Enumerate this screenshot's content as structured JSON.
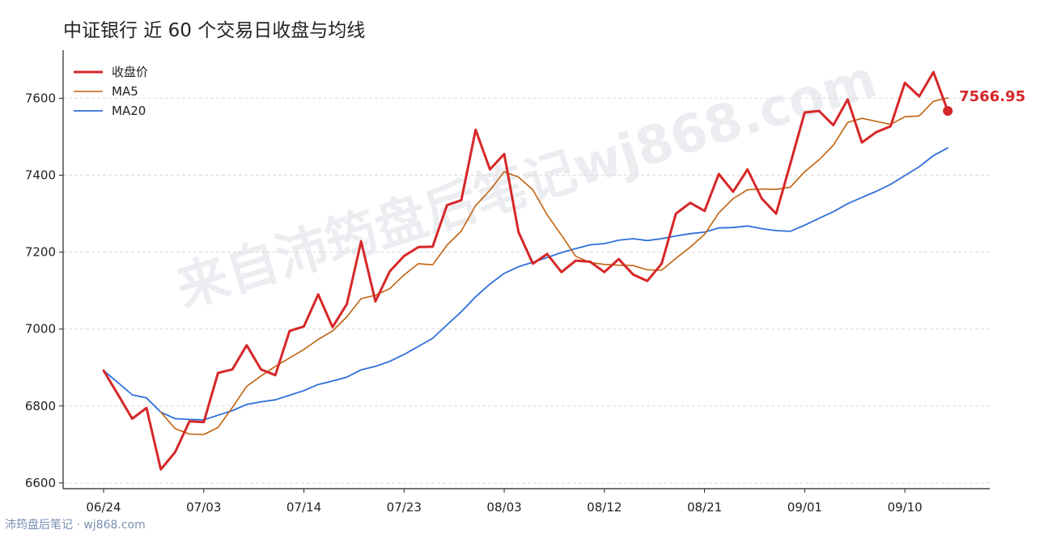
{
  "title": "中证银行 近 60 个交易日收盘与均线",
  "watermark": "来自沛筠盘后笔记wj868.com",
  "footer": "沛筠盘后笔记 · wj868.com",
  "chart_data": {
    "type": "line",
    "x": [
      "06/24",
      "06/25",
      "06/26",
      "06/27",
      "06/28",
      "07/01",
      "07/02",
      "07/03",
      "07/04",
      "07/05",
      "07/08",
      "07/09",
      "07/10",
      "07/11",
      "07/12",
      "07/15",
      "07/16",
      "07/17",
      "07/18",
      "07/19",
      "07/22",
      "07/23",
      "07/24",
      "07/25",
      "07/26",
      "07/29",
      "07/30",
      "07/31",
      "08/01",
      "08/02",
      "08/05",
      "08/06",
      "08/07",
      "08/08",
      "08/09",
      "08/12",
      "08/13",
      "08/14",
      "08/15",
      "08/16",
      "08/19",
      "08/20",
      "08/21",
      "08/22",
      "08/23",
      "08/26",
      "08/27",
      "08/28",
      "08/29",
      "08/30",
      "09/02",
      "09/03",
      "09/04",
      "09/05",
      "09/06",
      "09/09",
      "09/10",
      "09/11",
      "09/12",
      "09/13"
    ],
    "xticks": [
      "06/24",
      "07/03",
      "07/14",
      "07/23",
      "08/03",
      "08/12",
      "08/21",
      "09/01",
      "09/10"
    ],
    "xtick_positions": [
      0,
      7,
      14,
      21,
      28,
      35,
      42,
      49,
      56
    ],
    "yticks": [
      6600,
      6800,
      7000,
      7200,
      7400,
      7600
    ],
    "ylim": [
      6585,
      7725
    ],
    "series": [
      {
        "name": "收盘价",
        "color": "#d62728",
        "values": [
          6892,
          6830,
          6767,
          6795,
          6635,
          6680,
          6760,
          6758,
          6886,
          6895,
          6958,
          6895,
          6880,
          6995,
          7007,
          7090,
          7005,
          7065,
          7228,
          7072,
          7150,
          7190,
          7213,
          7214,
          7322,
          7335,
          7518,
          7415,
          7455,
          7252,
          7170,
          7195,
          7148,
          7178,
          7175,
          7148,
          7182,
          7142,
          7125,
          7170,
          7300,
          7328,
          7307,
          7403,
          7357,
          7415,
          7339,
          7300,
          7430,
          7563,
          7567,
          7530,
          7597,
          7485,
          7512,
          7527,
          7640,
          7605,
          7668,
          7567
        ]
      },
      {
        "name": "MA5",
        "color": "#c0620f",
        "values": [
          null,
          null,
          null,
          null,
          6784,
          6741,
          6727,
          6726,
          6744,
          6796,
          6851,
          6878,
          6903,
          6925,
          6947,
          6973,
          6995,
          7032,
          7079,
          7088,
          7105,
          7141,
          7170,
          7167,
          7218,
          7255,
          7321,
          7361,
          7409,
          7395,
          7362,
          7297,
          7244,
          7189,
          7173,
          7168,
          7166,
          7165,
          7154,
          7153,
          7184,
          7213,
          7246,
          7302,
          7339,
          7362,
          7364,
          7363,
          7369,
          7409,
          7440,
          7478,
          7537,
          7548,
          7540,
          7532,
          7552,
          7554,
          7592,
          7601
        ]
      },
      {
        "name": "MA20",
        "color": "#2f6fdb",
        "values": [
          6892,
          6861,
          6829,
          6821,
          6784,
          6767,
          6765,
          6764,
          6776,
          6788,
          6804,
          6811,
          6816,
          6828,
          6840,
          6856,
          6865,
          6875,
          6894,
          6903,
          6916,
          6934,
          6955,
          6976,
          7011,
          7045,
          7084,
          7117,
          7145,
          7162,
          7174,
          7186,
          7199,
          7209,
          7219,
          7222,
          7231,
          7235,
          7230,
          7235,
          7242,
          7248,
          7252,
          7263,
          7264,
          7268,
          7261,
          7256,
          7254,
          7270,
          7288,
          7305,
          7326,
          7342,
          7358,
          7376,
          7399,
          7422,
          7451,
          7471
        ]
      }
    ],
    "last_value_label": "7566.95",
    "legend": "top-left",
    "grid": "y-dashed"
  }
}
